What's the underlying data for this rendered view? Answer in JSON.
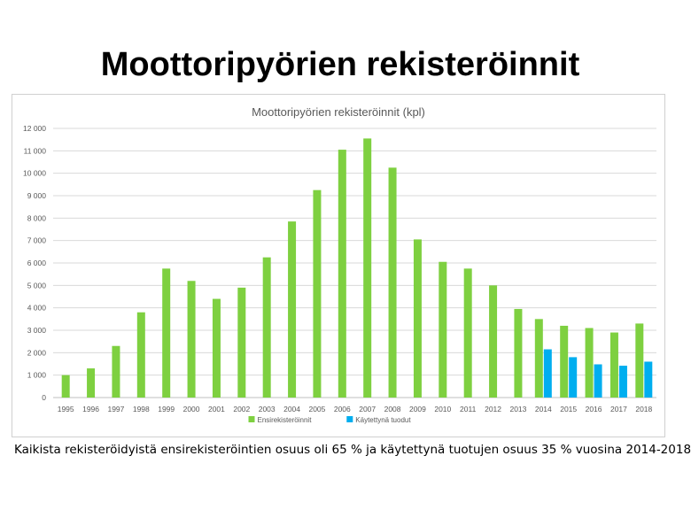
{
  "page": {
    "title": "Moottoripyörien rekisteröinnit",
    "caption": "Kaikista rekisteröidyistä ensirekisteröintien osuus oli 65 % ja käytettynä tuotujen osuus 35 % vuosina 2014-2018"
  },
  "chart_data": {
    "type": "bar",
    "title": "Moottoripyörien rekisteröinnit (kpl)",
    "xlabel": "",
    "ylabel": "",
    "ylim": [
      0,
      12000
    ],
    "yticks": [
      0,
      1000,
      2000,
      3000,
      4000,
      5000,
      6000,
      7000,
      8000,
      9000,
      10000,
      11000,
      12000
    ],
    "ytick_labels": [
      "0",
      "1 000",
      "2 000",
      "3 000",
      "4 000",
      "5 000",
      "6 000",
      "7 000",
      "8 000",
      "9 000",
      "10 000",
      "11 000",
      "12 000"
    ],
    "grid": true,
    "legend_position": "bottom-center",
    "categories": [
      "1995",
      "1996",
      "1997",
      "1998",
      "1999",
      "2000",
      "2001",
      "2002",
      "2003",
      "2004",
      "2005",
      "2006",
      "2007",
      "2008",
      "2009",
      "2010",
      "2011",
      "2012",
      "2013",
      "2014",
      "2015",
      "2016",
      "2017",
      "2018"
    ],
    "series": [
      {
        "name": "Ensirekisteröinnit",
        "color": "#7ed040",
        "values": [
          1000,
          1300,
          2300,
          3800,
          5750,
          5200,
          4400,
          4900,
          6250,
          7850,
          9250,
          11050,
          11550,
          10250,
          7050,
          6050,
          5750,
          5000,
          3950,
          3500,
          3200,
          3100,
          2900,
          3300
        ]
      },
      {
        "name": "Käytettynä tuodut",
        "color": "#00aeef",
        "values": [
          null,
          null,
          null,
          null,
          null,
          null,
          null,
          null,
          null,
          null,
          null,
          null,
          null,
          null,
          null,
          null,
          null,
          null,
          null,
          2150,
          1800,
          1480,
          1420,
          1600
        ]
      }
    ]
  }
}
